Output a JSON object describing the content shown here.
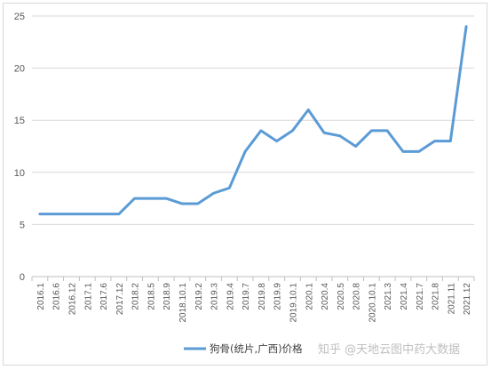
{
  "chart_data": {
    "type": "line",
    "title": "",
    "xlabel": "",
    "ylabel": "",
    "ylim": [
      0,
      25
    ],
    "yticks": [
      0,
      5,
      10,
      15,
      20,
      25
    ],
    "grid": "horizontal",
    "legend_position": "bottom-right",
    "x": [
      "2016.1",
      "2016.6",
      "2016.12",
      "2017.1",
      "2017.6",
      "2017.12",
      "2018.2",
      "2018.5",
      "2018.9",
      "2018.10.1",
      "2019.2",
      "2019.3",
      "2019.4",
      "2019.7",
      "2019.8",
      "2019.9",
      "2019.10.1",
      "2020.1",
      "2020.4",
      "2020.5",
      "2020.8",
      "2020.10.1",
      "2021.3",
      "2021.4",
      "2021.7",
      "2021.8",
      "2021.11",
      "2021.12"
    ],
    "series": [
      {
        "name": "狗骨(统片,广西)价格",
        "color": "#5b9bd5",
        "values": [
          6,
          6,
          6,
          6,
          6,
          6,
          7.5,
          7.5,
          7.5,
          7,
          7,
          8,
          8.5,
          12,
          14,
          13,
          14,
          16,
          13.8,
          13.5,
          12.5,
          14,
          14,
          12,
          12,
          13,
          13,
          24
        ]
      }
    ]
  },
  "watermark": "知乎 @天地云图中药大数据"
}
